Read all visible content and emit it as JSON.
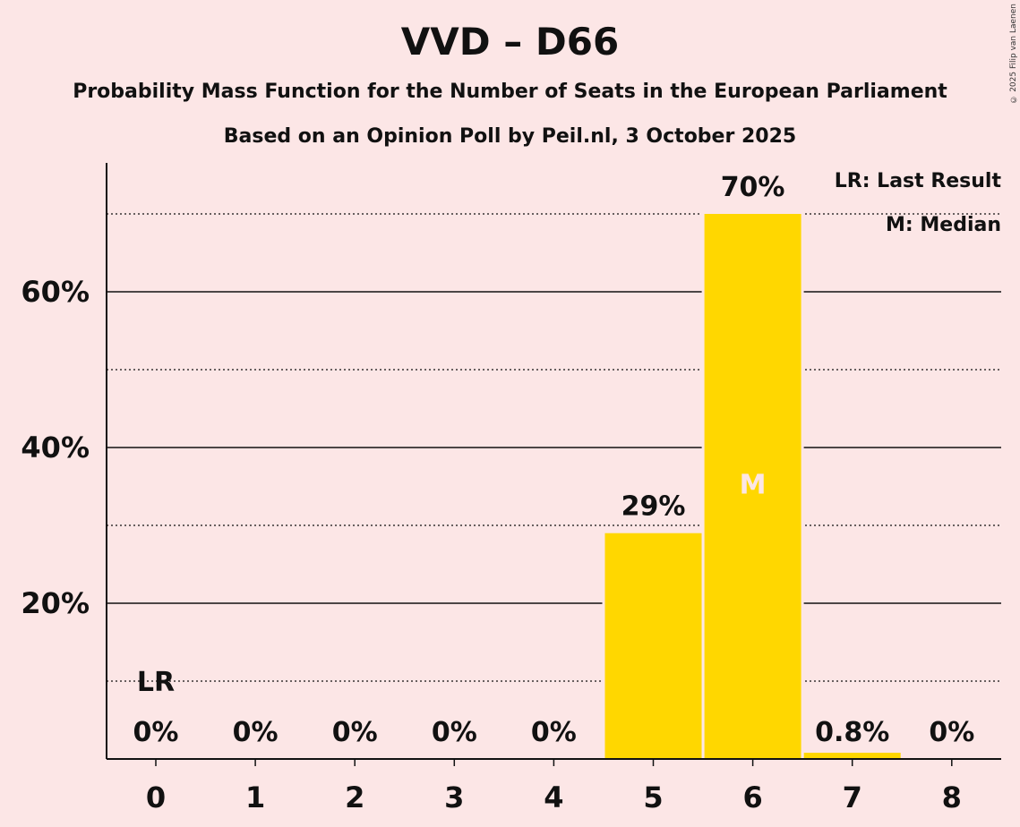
{
  "title": "VVD – D66",
  "subtitle": "Probability Mass Function for the Number of Seats in the European Parliament",
  "subtitle2": "Based on an Opinion Poll by Peil.nl, 3 October 2025",
  "copyright": "© 2025 Filip van Laenen",
  "legend": {
    "lr": "LR: Last Result",
    "m": "M: Median"
  },
  "colors": {
    "bar": "#ffd700",
    "background": "#fce6e6",
    "median_text": "#fce6e6"
  },
  "chart_data": {
    "type": "bar",
    "title": "VVD – D66",
    "xlabel": "",
    "ylabel": "",
    "categories": [
      "0",
      "1",
      "2",
      "3",
      "4",
      "5",
      "6",
      "7",
      "8"
    ],
    "values": [
      0,
      0,
      0,
      0,
      0,
      29,
      70,
      0.8,
      0
    ],
    "data_labels": [
      "0%",
      "0%",
      "0%",
      "0%",
      "0%",
      "29%",
      "70%",
      "0.8%",
      "0%"
    ],
    "ylim": [
      0,
      76
    ],
    "yticks": [
      20,
      40,
      60
    ],
    "ytick_labels": [
      "20%",
      "40%",
      "60%"
    ],
    "minor_gridlines": [
      10,
      30,
      50,
      70
    ],
    "last_result": 0,
    "median": 6,
    "annotations": {
      "last_result_label": "LR",
      "median_label": "M"
    },
    "legend_position": "top-right"
  }
}
